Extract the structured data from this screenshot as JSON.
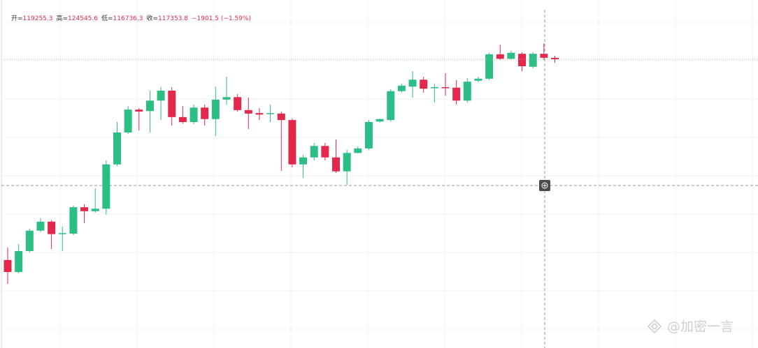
{
  "chart_data": {
    "type": "candlestick",
    "header": [
      {
        "label": "开=",
        "value": 119255.3
      },
      {
        "label": "高=",
        "value": 124545.6
      },
      {
        "label": "低=",
        "value": 116736.3
      },
      {
        "label": "收=",
        "value": 117353.8
      }
    ],
    "change": "−1901.5 (−1.59%)",
    "watermark": "@加密一言",
    "up_color": "#2dbd86",
    "down_color": "#e3294b",
    "ylim": [
      61840,
      131700
    ],
    "open": [
      79500,
      77100,
      81300,
      85400,
      87200,
      84900,
      84800,
      90100,
      89300,
      89800,
      98700,
      105100,
      109700,
      109400,
      111500,
      113500,
      108200,
      107200,
      110100,
      107800,
      111700,
      112200,
      109600,
      109000,
      108900,
      108900,
      107600,
      98700,
      100100,
      102400,
      100100,
      97300,
      101000,
      101900,
      107300,
      107600,
      113400,
      114300,
      115700,
      114200,
      114200,
      114100,
      111500,
      115500,
      115900,
      120800,
      119900,
      120900,
      118300,
      120900,
      120100
    ],
    "high": [
      82000,
      82700,
      85800,
      87900,
      87500,
      86200,
      90400,
      90700,
      93900,
      99500,
      107200,
      110400,
      110000,
      113500,
      114200,
      114200,
      110400,
      110700,
      110700,
      114300,
      116300,
      112800,
      112100,
      110000,
      110700,
      109300,
      107900,
      100600,
      103000,
      103000,
      103700,
      101600,
      102300,
      107600,
      107900,
      113800,
      114900,
      117400,
      116300,
      114900,
      117000,
      115600,
      116000,
      116300,
      121100,
      122700,
      121500,
      121200,
      121200,
      123000,
      120500
    ],
    "low": [
      74700,
      76800,
      81000,
      85100,
      81700,
      81300,
      84500,
      86900,
      89000,
      88600,
      98400,
      104800,
      105500,
      105100,
      107600,
      106500,
      106900,
      106800,
      106500,
      104400,
      110700,
      109300,
      105800,
      107600,
      107200,
      97400,
      98100,
      96000,
      99500,
      99500,
      97000,
      94600,
      100900,
      101600,
      107100,
      107300,
      113100,
      112100,
      113100,
      111100,
      112500,
      110700,
      111100,
      115200,
      115600,
      119700,
      119700,
      117400,
      118000,
      119700,
      119100
    ],
    "close": [
      77100,
      81300,
      85400,
      87200,
      84700,
      84900,
      90100,
      89300,
      89800,
      98700,
      105100,
      109700,
      109300,
      111500,
      113500,
      108200,
      107200,
      110100,
      107800,
      111700,
      112200,
      109600,
      108900,
      108700,
      109000,
      107600,
      98700,
      100100,
      102400,
      100100,
      97300,
      101000,
      101900,
      107200,
      107800,
      113400,
      114500,
      115700,
      113900,
      114200,
      114100,
      111500,
      115300,
      115900,
      120800,
      119900,
      121100,
      118400,
      120900,
      120100,
      119800
    ]
  }
}
